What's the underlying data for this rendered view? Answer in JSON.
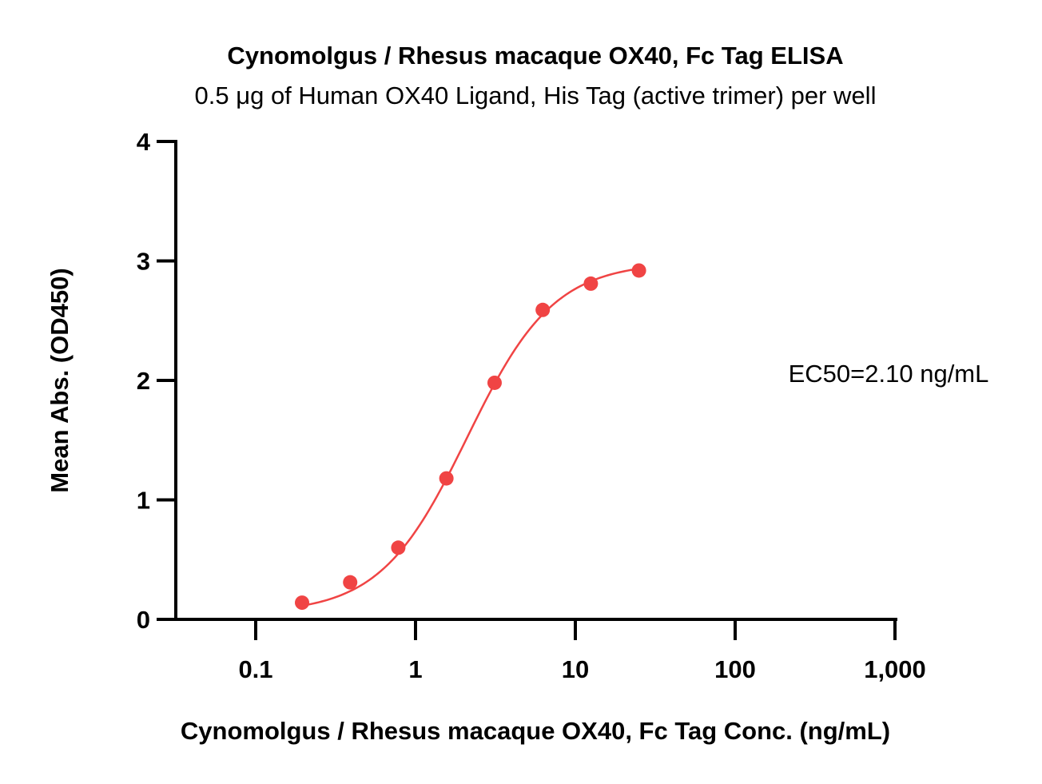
{
  "chart_data": {
    "type": "scatter",
    "title": "Cynomolgus / Rhesus macaque OX40, Fc Tag ELISA",
    "subtitle": "0.5 μg of Human OX40 Ligand, His Tag (active trimer) per well",
    "xlabel": "Cynomolgus / Rhesus macaque OX40, Fc Tag Conc. (ng/mL)",
    "ylabel": "Mean Abs. (OD450)",
    "x_scale": "log",
    "xlim": [
      0.03,
      1000
    ],
    "ylim": [
      0,
      4
    ],
    "x_ticks": [
      0.1,
      1,
      10,
      100,
      1000
    ],
    "x_tick_labels": [
      "0.1",
      "1",
      "10",
      "100",
      "1,000"
    ],
    "y_ticks": [
      0,
      1,
      2,
      3,
      4
    ],
    "y_tick_labels": [
      "0",
      "1",
      "2",
      "3",
      "4"
    ],
    "grid": false,
    "series": [
      {
        "color": "#f04444",
        "x": [
          0.195,
          0.39,
          0.78,
          1.56,
          3.125,
          6.25,
          12.5,
          25
        ],
        "y": [
          0.14,
          0.31,
          0.6,
          1.18,
          1.98,
          2.59,
          2.81,
          2.92
        ],
        "fit": "4PL"
      }
    ],
    "annotations": [
      {
        "text": "EC50=2.10 ng/mL"
      }
    ]
  }
}
